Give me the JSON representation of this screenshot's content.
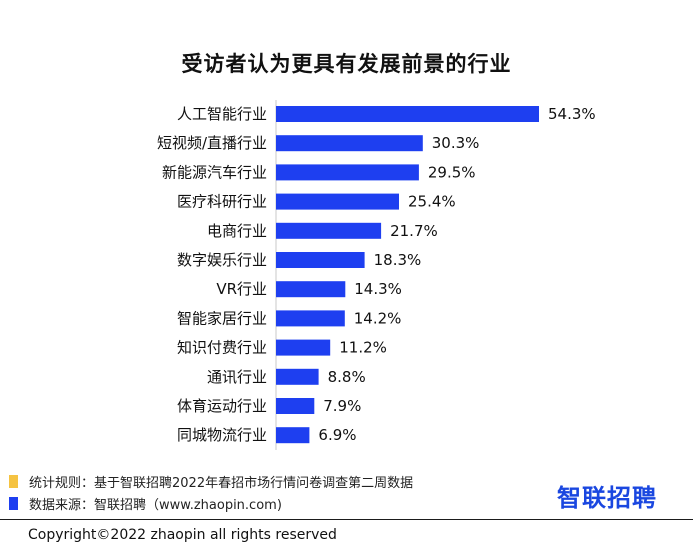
{
  "chart_data": {
    "type": "bar",
    "orientation": "horizontal",
    "title": "受访者认为更具有发展前景的行业",
    "categories": [
      "人工智能行业",
      "短视频/直播行业",
      "新能源汽车行业",
      "医疗科研行业",
      "电商行业",
      "数字娱乐行业",
      "VR行业",
      "智能家居行业",
      "知识付费行业",
      "通讯行业",
      "体育运动行业",
      "同城物流行业"
    ],
    "values": [
      54.3,
      30.3,
      29.5,
      25.4,
      21.7,
      18.3,
      14.3,
      14.2,
      11.2,
      8.8,
      7.9,
      6.9
    ],
    "value_labels": [
      "54.3%",
      "30.3%",
      "29.5%",
      "25.4%",
      "21.7%",
      "18.3%",
      "14.3%",
      "14.2%",
      "11.2%",
      "8.8%",
      "7.9%",
      "6.9%"
    ],
    "unit": "%",
    "xlim": [
      0,
      54.3
    ],
    "bar_color": "#1e3ff0",
    "grid": false,
    "legend": "none"
  },
  "notes": {
    "rule": "统计规则：基于智联招聘2022年春招市场行情问卷调查第二周数据",
    "source": "数据来源：智联招聘（www.zhaopin.com)",
    "rule_marker_color": "#f5c342",
    "source_marker_color": "#1e3ff0"
  },
  "logo": {
    "text": "智联招聘"
  },
  "footer": {
    "copyright": "Copyright©2022 zhaopin all rights reserved"
  }
}
